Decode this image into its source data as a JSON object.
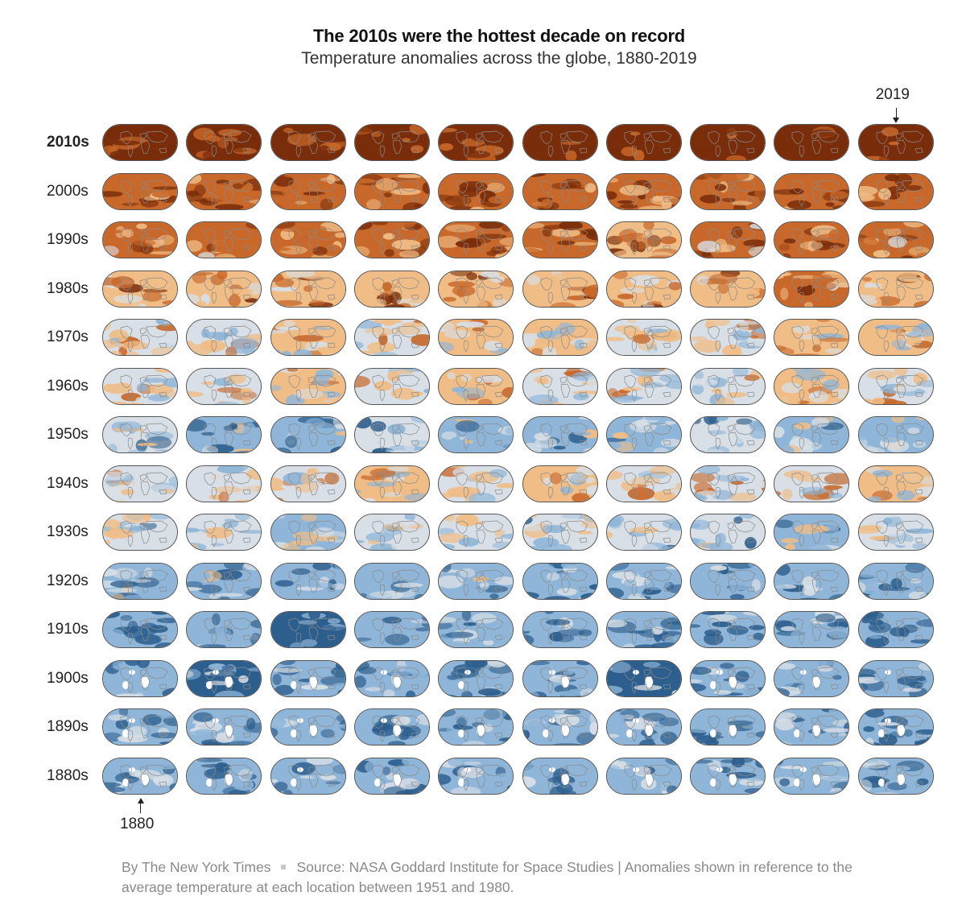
{
  "chart_data": {
    "type": "heatmap",
    "title": "The 2010s were the hottest decade on record",
    "subtitle": "Temperature anomalies across the globe, 1880-2019",
    "rows": [
      "2010s",
      "2000s",
      "1990s",
      "1980s",
      "1970s",
      "1960s",
      "1950s",
      "1940s",
      "1930s",
      "1920s",
      "1910s",
      "1900s",
      "1890s",
      "1880s"
    ],
    "columns_per_row": 10,
    "highlighted_row": "2010s",
    "annotations": [
      {
        "label": "2019",
        "points_to": "2019"
      },
      {
        "label": "1880",
        "points_to": "1880"
      }
    ],
    "decade_tone": {
      "2010s": 1.0,
      "2000s": 0.75,
      "1990s": 0.55,
      "1980s": 0.4,
      "1970s": 0.05,
      "1960s": 0.0,
      "1950s": -0.2,
      "1940s": 0.05,
      "1930s": -0.1,
      "1920s": -0.35,
      "1910s": -0.55,
      "1900s": -0.5,
      "1890s": -0.45,
      "1880s": -0.4
    },
    "colors": {
      "hot_dark": "#7a2d0a",
      "hot": "#c8682a",
      "warm": "#f0bd86",
      "neutral": "#d8dfe6",
      "cool": "#8fb6d8",
      "cold_dark": "#2d5f8e",
      "missing": "#ffffff",
      "coastline": "#8a8a8a"
    }
  },
  "footer": {
    "byline": "By The New York Times",
    "source": "Source: NASA Goddard Institute for Space Studies | Anomalies shown in reference to the average temperature at each location between 1951 and 1980."
  }
}
